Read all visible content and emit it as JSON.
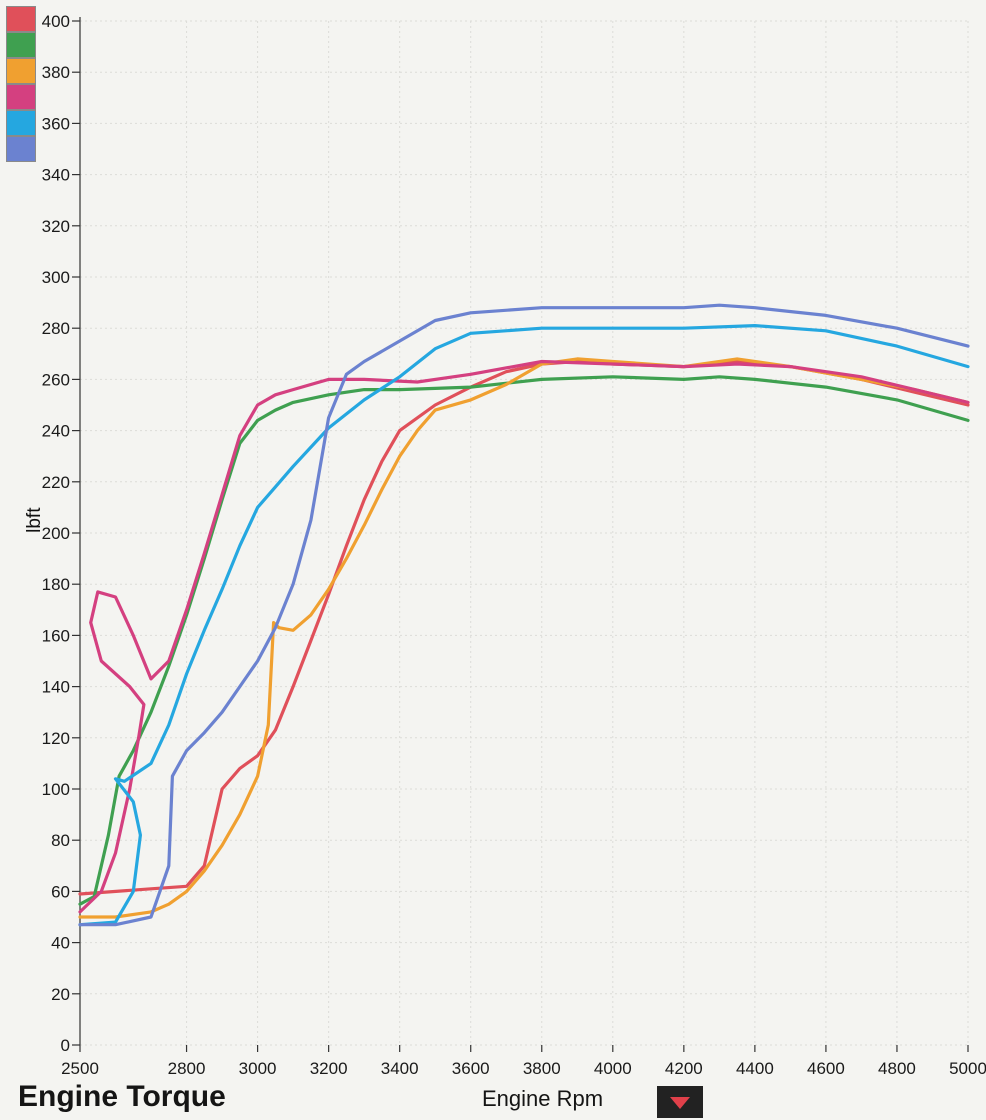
{
  "chart_data": {
    "type": "line",
    "title": "Engine Torque",
    "xlabel": "Engine Rpm",
    "ylabel": "lbft",
    "xlim": [
      2500,
      5000
    ],
    "ylim": [
      0,
      400
    ],
    "x_ticks": [
      "2500",
      "2800",
      "3000",
      "3200",
      "3400",
      "3600",
      "3800",
      "4000",
      "4200",
      "4400",
      "4600",
      "4800",
      "5000"
    ],
    "y_ticks": [
      "0",
      "20",
      "40",
      "60",
      "80",
      "100",
      "120",
      "140",
      "160",
      "180",
      "200",
      "220",
      "240",
      "260",
      "280",
      "300",
      "320",
      "340",
      "360",
      "380",
      "400"
    ],
    "grid": true,
    "legend": "top-left color swatches",
    "series": [
      {
        "color": "#e0505a",
        "points": [
          [
            2500,
            59
          ],
          [
            2700,
            61
          ],
          [
            2800,
            62
          ],
          [
            2850,
            70
          ],
          [
            2900,
            100
          ],
          [
            2950,
            108
          ],
          [
            3000,
            113
          ],
          [
            3050,
            123
          ],
          [
            3100,
            140
          ],
          [
            3150,
            158
          ],
          [
            3200,
            176
          ],
          [
            3250,
            195
          ],
          [
            3300,
            213
          ],
          [
            3350,
            228
          ],
          [
            3400,
            240
          ],
          [
            3500,
            250
          ],
          [
            3600,
            257
          ],
          [
            3700,
            263
          ],
          [
            3800,
            266
          ],
          [
            3900,
            267
          ],
          [
            4000,
            266
          ],
          [
            4200,
            265
          ],
          [
            4350,
            267
          ],
          [
            4500,
            265
          ],
          [
            4700,
            260
          ],
          [
            4850,
            255
          ],
          [
            5000,
            250
          ]
        ]
      },
      {
        "color": "#3fa050",
        "points": [
          [
            2500,
            55
          ],
          [
            2540,
            58
          ],
          [
            2580,
            82
          ],
          [
            2610,
            105
          ],
          [
            2650,
            115
          ],
          [
            2700,
            130
          ],
          [
            2750,
            148
          ],
          [
            2800,
            168
          ],
          [
            2850,
            190
          ],
          [
            2900,
            213
          ],
          [
            2950,
            235
          ],
          [
            3000,
            244
          ],
          [
            3050,
            248
          ],
          [
            3100,
            251
          ],
          [
            3200,
            254
          ],
          [
            3300,
            256
          ],
          [
            3400,
            256
          ],
          [
            3600,
            257
          ],
          [
            3800,
            260
          ],
          [
            4000,
            261
          ],
          [
            4200,
            260
          ],
          [
            4300,
            261
          ],
          [
            4400,
            260
          ],
          [
            4600,
            257
          ],
          [
            4800,
            252
          ],
          [
            5000,
            244
          ]
        ]
      },
      {
        "color": "#f0a030",
        "points": [
          [
            2500,
            50
          ],
          [
            2600,
            50
          ],
          [
            2700,
            52
          ],
          [
            2750,
            55
          ],
          [
            2800,
            60
          ],
          [
            2850,
            68
          ],
          [
            2900,
            78
          ],
          [
            2950,
            90
          ],
          [
            3000,
            105
          ],
          [
            3030,
            125
          ],
          [
            3045,
            165
          ],
          [
            3060,
            163
          ],
          [
            3100,
            162
          ],
          [
            3150,
            168
          ],
          [
            3200,
            178
          ],
          [
            3250,
            190
          ],
          [
            3300,
            203
          ],
          [
            3350,
            217
          ],
          [
            3400,
            230
          ],
          [
            3450,
            240
          ],
          [
            3500,
            248
          ],
          [
            3600,
            252
          ],
          [
            3700,
            258
          ],
          [
            3800,
            266
          ],
          [
            3900,
            268
          ],
          [
            4000,
            267
          ],
          [
            4200,
            265
          ],
          [
            4350,
            268
          ],
          [
            4500,
            265
          ],
          [
            4700,
            260
          ],
          [
            4850,
            256
          ],
          [
            5000,
            251
          ]
        ]
      },
      {
        "color": "#d44080",
        "points": [
          [
            2500,
            52
          ],
          [
            2560,
            60
          ],
          [
            2600,
            75
          ],
          [
            2640,
            100
          ],
          [
            2665,
            120
          ],
          [
            2680,
            133
          ],
          [
            2640,
            140
          ],
          [
            2560,
            150
          ],
          [
            2530,
            165
          ],
          [
            2550,
            177
          ],
          [
            2600,
            175
          ],
          [
            2650,
            160
          ],
          [
            2700,
            143
          ],
          [
            2750,
            150
          ],
          [
            2800,
            170
          ],
          [
            2850,
            192
          ],
          [
            2900,
            215
          ],
          [
            2950,
            238
          ],
          [
            3000,
            250
          ],
          [
            3050,
            254
          ],
          [
            3100,
            256
          ],
          [
            3200,
            260
          ],
          [
            3300,
            260
          ],
          [
            3450,
            259
          ],
          [
            3600,
            262
          ],
          [
            3800,
            267
          ],
          [
            4000,
            266
          ],
          [
            4200,
            265
          ],
          [
            4350,
            266
          ],
          [
            4500,
            265
          ],
          [
            4700,
            261
          ],
          [
            4850,
            256
          ],
          [
            5000,
            251
          ]
        ]
      },
      {
        "color": "#25a7e0",
        "points": [
          [
            2500,
            47
          ],
          [
            2600,
            48
          ],
          [
            2650,
            60
          ],
          [
            2670,
            82
          ],
          [
            2650,
            95
          ],
          [
            2600,
            104
          ],
          [
            2625,
            103
          ],
          [
            2700,
            110
          ],
          [
            2750,
            125
          ],
          [
            2800,
            145
          ],
          [
            2850,
            162
          ],
          [
            2900,
            178
          ],
          [
            2950,
            195
          ],
          [
            3000,
            210
          ],
          [
            3050,
            218
          ],
          [
            3100,
            226
          ],
          [
            3200,
            241
          ],
          [
            3300,
            252
          ],
          [
            3400,
            261
          ],
          [
            3500,
            272
          ],
          [
            3600,
            278
          ],
          [
            3800,
            280
          ],
          [
            4000,
            280
          ],
          [
            4200,
            280
          ],
          [
            4400,
            281
          ],
          [
            4600,
            279
          ],
          [
            4800,
            273
          ],
          [
            5000,
            265
          ]
        ]
      },
      {
        "color": "#6b82d0",
        "points": [
          [
            2500,
            47
          ],
          [
            2600,
            47
          ],
          [
            2700,
            50
          ],
          [
            2750,
            70
          ],
          [
            2760,
            105
          ],
          [
            2800,
            115
          ],
          [
            2850,
            122
          ],
          [
            2900,
            130
          ],
          [
            2950,
            140
          ],
          [
            3000,
            150
          ],
          [
            3050,
            163
          ],
          [
            3100,
            180
          ],
          [
            3150,
            205
          ],
          [
            3200,
            245
          ],
          [
            3250,
            262
          ],
          [
            3300,
            267
          ],
          [
            3400,
            275
          ],
          [
            3500,
            283
          ],
          [
            3600,
            286
          ],
          [
            3800,
            288
          ],
          [
            4000,
            288
          ],
          [
            4200,
            288
          ],
          [
            4300,
            289
          ],
          [
            4400,
            288
          ],
          [
            4600,
            285
          ],
          [
            4800,
            280
          ],
          [
            5000,
            273
          ]
        ]
      }
    ]
  },
  "ui": {
    "legend_swatches": [
      "#e0505a",
      "#3fa050",
      "#f0a030",
      "#d44080",
      "#25a7e0",
      "#6b82d0"
    ],
    "dropdown_icon": "triangle-down-icon",
    "dropdown_icon_color": "#e0404a"
  }
}
